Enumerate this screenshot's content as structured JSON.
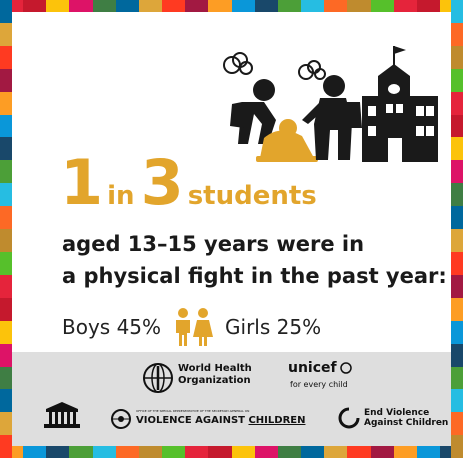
{
  "colors": {
    "accent": "#E2A52C",
    "text": "#1a1a1a",
    "footer_bg": "#dedede",
    "sdg_border": [
      "#E5243B",
      "#DDA63A",
      "#4C9F38",
      "#C5192D",
      "#FF3A21",
      "#26BDE2",
      "#FCC30B",
      "#A21942",
      "#FD6925",
      "#DD1367",
      "#FD9D24",
      "#BF8B2E",
      "#3F7E44",
      "#0A97D9",
      "#56C02B",
      "#00689D",
      "#19486A"
    ]
  },
  "icons": [
    "bully-figures-icon",
    "school-building-icon",
    "boy-girl-icon",
    "unesco-temple-icon",
    "un-emblem-icon",
    "end-violence-circle-icon"
  ],
  "headline": {
    "num1": "1",
    "word_in": "in",
    "num2": "3",
    "word_students": "students"
  },
  "body": {
    "line1": "aged 13–15 years were in",
    "line2": "a physical fight in the past year:"
  },
  "stats": {
    "boys": "Boys 45%",
    "girls": "Girls 25%"
  },
  "footer": {
    "who_line1": "World Health",
    "who_line2": "Organization",
    "unicef_name": "unicef",
    "unicef_tagline": "for every child",
    "srsg_small": "OFFICE OF THE SPECIAL REPRESENTATIVE OF THE SECRETARY-GENERAL ON",
    "srsg_big_1": "VIOLENCE AGAINST",
    "srsg_big_2": "CHILDREN",
    "endviolence_line1": "End Violence",
    "endviolence_line2": "Against Children"
  }
}
